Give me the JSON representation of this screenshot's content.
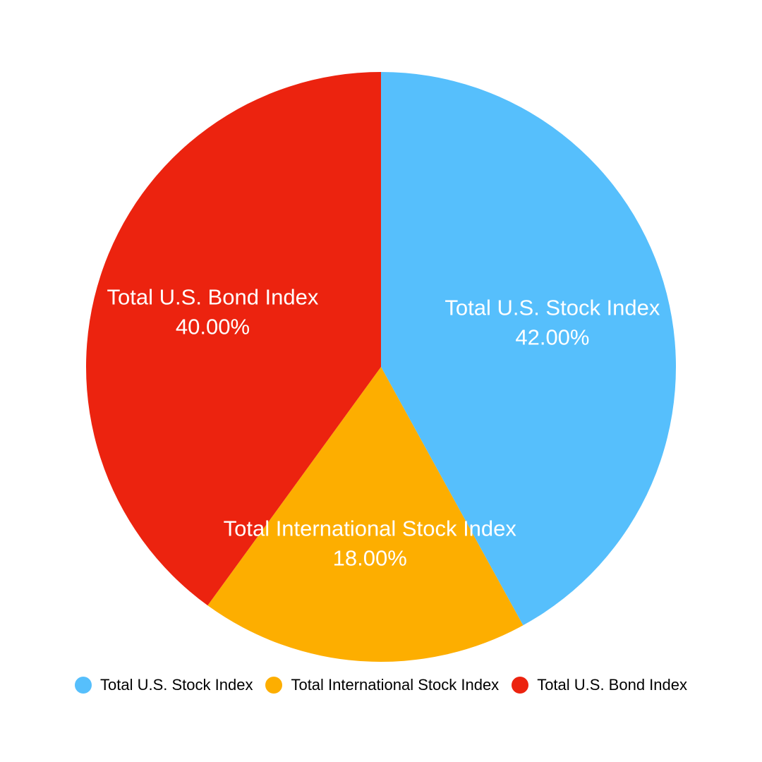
{
  "chart_data": {
    "type": "pie",
    "title": "",
    "legend_position": "bottom",
    "slices": [
      {
        "label": "Total U.S. Stock Index",
        "value": 42.0,
        "value_label": "42.00%",
        "color": "#56BFFC"
      },
      {
        "label": "Total International Stock Index",
        "value": 18.0,
        "value_label": "18.00%",
        "color": "#FDAE00"
      },
      {
        "label": "Total U.S. Bond Index",
        "value": 40.0,
        "value_label": "40.00%",
        "color": "#EC230F"
      }
    ]
  }
}
